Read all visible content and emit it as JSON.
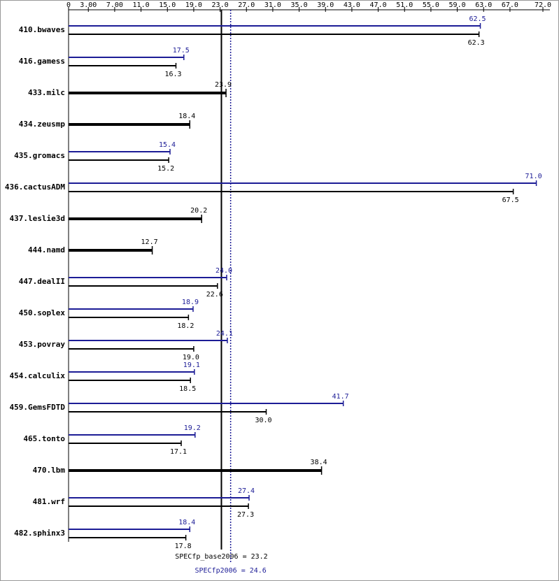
{
  "chart_data": {
    "type": "bar",
    "categories": [
      "410.bwaves",
      "416.gamess",
      "433.milc",
      "434.zeusmp",
      "435.gromacs",
      "436.cactusADM",
      "437.leslie3d",
      "444.namd",
      "447.dealII",
      "450.soplex",
      "453.povray",
      "454.calculix",
      "459.GemsFDTD",
      "465.tonto",
      "470.lbm",
      "481.wrf",
      "482.sphinx3"
    ],
    "series": [
      {
        "color": "#1c1c96",
        "values": [
          62.5,
          17.5,
          null,
          null,
          15.4,
          71.0,
          null,
          null,
          24.0,
          18.9,
          24.1,
          19.1,
          41.7,
          19.2,
          null,
          27.4,
          18.4
        ],
        "value_labels": [
          "62.5",
          "17.5",
          null,
          null,
          "15.4",
          "71.0",
          null,
          null,
          "24.0",
          "18.9",
          "24.1",
          "19.1",
          "41.7",
          "19.2",
          null,
          "27.4",
          "18.4"
        ]
      },
      {
        "color": "#000000",
        "values": [
          62.3,
          16.3,
          23.9,
          18.4,
          15.2,
          67.5,
          20.2,
          12.7,
          22.6,
          18.2,
          19.0,
          18.5,
          30.0,
          17.1,
          38.4,
          27.3,
          17.8
        ],
        "value_labels": [
          "62.3",
          "16.3",
          "23.9",
          "18.4",
          "15.2",
          "67.5",
          "20.2",
          "12.7",
          "22.6",
          "18.2",
          "19.0",
          "18.5",
          "30.0",
          "17.1",
          "38.4",
          "27.3",
          "17.8"
        ]
      }
    ],
    "xlim": [
      0,
      72
    ],
    "xticks": [
      0,
      {
        "value": 3,
        "label": "3.00"
      },
      {
        "value": 7,
        "label": "7.00"
      },
      {
        "value": 11,
        "label": "11.0"
      },
      {
        "value": 15,
        "label": "15.0"
      },
      {
        "value": 19,
        "label": "19.0"
      },
      {
        "value": 23,
        "label": "23.0"
      },
      {
        "value": 27,
        "label": "27.0"
      },
      {
        "value": 31,
        "label": "31.0"
      },
      {
        "value": 35,
        "label": "35.0"
      },
      {
        "value": 39,
        "label": "39.0"
      },
      {
        "value": 43,
        "label": "43.0"
      },
      {
        "value": 47,
        "label": "47.0"
      },
      {
        "value": 51,
        "label": "51.0"
      },
      {
        "value": 55,
        "label": "55.0"
      },
      {
        "value": 59,
        "label": "59.0"
      },
      {
        "value": 63,
        "label": "63.0"
      },
      {
        "value": 67,
        "label": "67.0"
      },
      {
        "value": 72,
        "label": "72.0"
      }
    ],
    "reference_lines": [
      {
        "label": "SPECfp_base2006 = 23.2",
        "value": 23.2,
        "color": "#000000",
        "dashed": false
      },
      {
        "label": "SPECfp2006 = 24.6",
        "value": 24.6,
        "color": "#1c1c96",
        "dashed": true
      }
    ]
  }
}
